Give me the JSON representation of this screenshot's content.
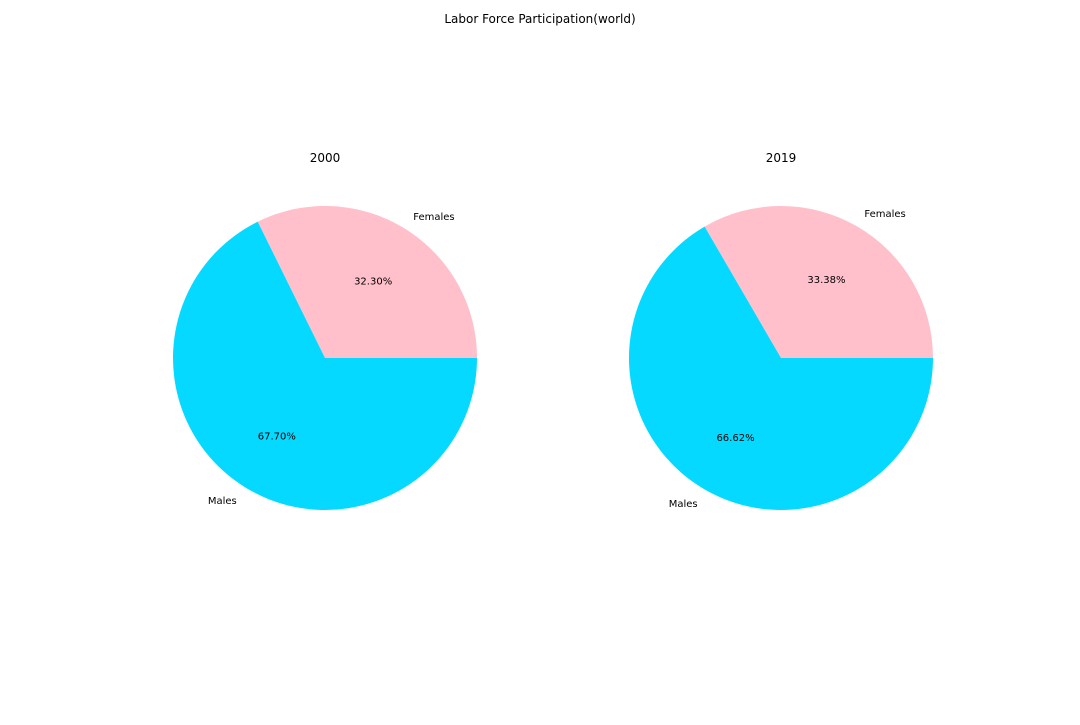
{
  "figure": {
    "title": "Labor Force Participation(world)"
  },
  "chart_data": [
    {
      "type": "pie",
      "title": "2000",
      "labels": [
        "Females",
        "Males"
      ],
      "values": [
        32.3,
        67.7
      ],
      "value_labels": [
        "32.30%",
        "67.70%"
      ],
      "colors": [
        "#ffc0cb",
        "#05d9ff"
      ],
      "start_angle_deg": 0,
      "direction": "counterclockwise"
    },
    {
      "type": "pie",
      "title": "2019",
      "labels": [
        "Females",
        "Males"
      ],
      "values": [
        33.38,
        66.62
      ],
      "value_labels": [
        "33.38%",
        "66.62%"
      ],
      "colors": [
        "#ffc0cb",
        "#05d9ff"
      ],
      "start_angle_deg": 0,
      "direction": "counterclockwise"
    }
  ]
}
